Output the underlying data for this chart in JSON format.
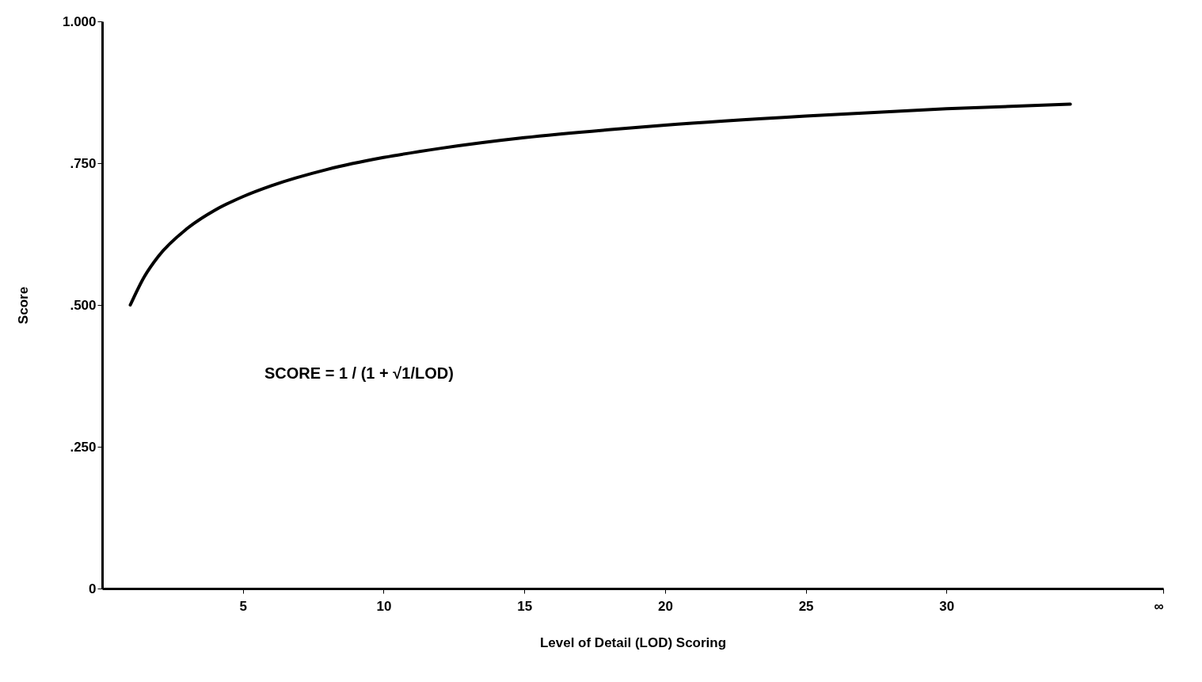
{
  "chart_data": {
    "type": "line",
    "xlabel": "Level of Detail (LOD) Scoring",
    "ylabel": "Score",
    "x": [
      1,
      1.5,
      2,
      3,
      4,
      5,
      6,
      8,
      10,
      12,
      15,
      18,
      20,
      25,
      30,
      34.4
    ],
    "series": [
      {
        "color": "#000000",
        "values": [
          0.5,
          0.55,
          0.586,
          0.634,
          0.667,
          0.691,
          0.71,
          0.739,
          0.76,
          0.776,
          0.795,
          0.809,
          0.817,
          0.833,
          0.846,
          0.854
        ]
      }
    ],
    "xlim": [
      0,
      37.7
    ],
    "ylim": [
      0,
      1
    ],
    "xticks": [
      5,
      10,
      15,
      20,
      25,
      30,
      {
        "value": 37.7,
        "label": "∞"
      }
    ],
    "yticks": [
      {
        "value": 0,
        "label": "0"
      },
      {
        "value": 0.25,
        "label": ".250"
      },
      {
        "value": 0.5,
        "label": ".500"
      },
      {
        "value": 0.75,
        "label": ".750"
      },
      {
        "value": 1,
        "label": "1.000"
      }
    ],
    "annotations": [
      "SCORE = 1 / (1 + √1/LOD)"
    ],
    "grid": false,
    "marker": "none",
    "line_style": "solid"
  }
}
